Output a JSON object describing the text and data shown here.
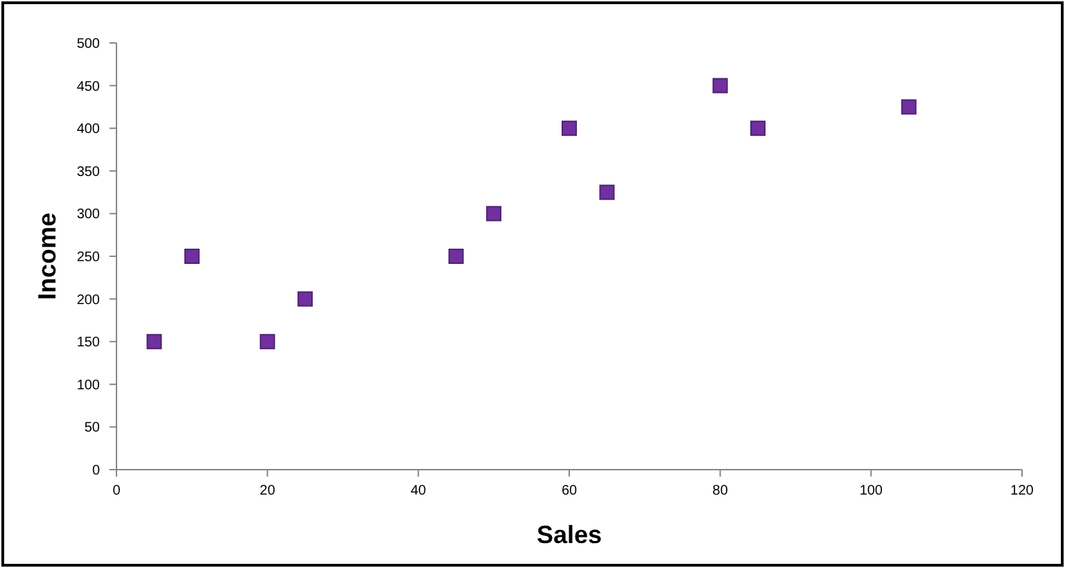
{
  "chart_data": {
    "type": "scatter",
    "xlabel": "Sales",
    "ylabel": "Income",
    "x": [
      5,
      10,
      20,
      25,
      45,
      50,
      60,
      65,
      80,
      85,
      105
    ],
    "series": [
      {
        "color": "#7030a0",
        "values": [
          150,
          250,
          150,
          200,
          250,
          300,
          400,
          325,
          450,
          400,
          425
        ]
      }
    ],
    "xlim": [
      0,
      120
    ],
    "xticks": [
      0,
      20,
      40,
      60,
      80,
      100,
      120
    ],
    "ylim": [
      0,
      500
    ],
    "yticks": [
      0,
      50,
      100,
      150,
      200,
      250,
      300,
      350,
      400,
      450,
      500
    ],
    "marker": "square",
    "grid": false
  }
}
